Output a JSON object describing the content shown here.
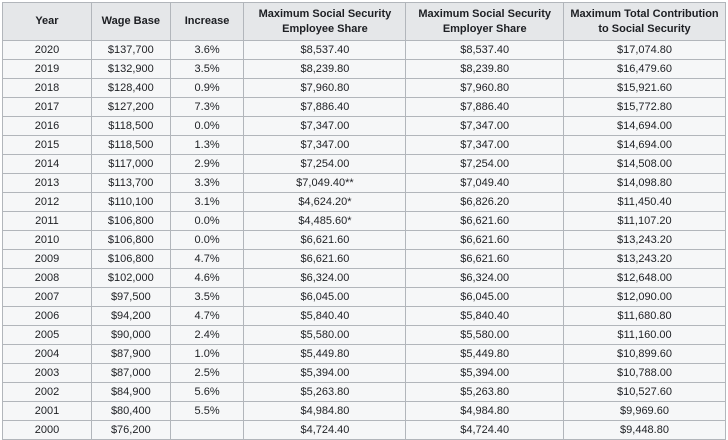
{
  "chart_data": {
    "type": "table",
    "columns": [
      {
        "line1": "Year",
        "line2": ""
      },
      {
        "line1": "Wage Base",
        "line2": ""
      },
      {
        "line1": "Increase",
        "line2": ""
      },
      {
        "line1": "Maximum Social Security",
        "line2": "Employee Share"
      },
      {
        "line1": "Maximum Social Security",
        "line2": "Employer Share"
      },
      {
        "line1": "Maximum Total Contribution",
        "line2": "to Social Security"
      }
    ],
    "rows": [
      [
        "2020",
        "$137,700",
        "3.6%",
        "$8,537.40",
        "$8,537.40",
        "$17,074.80"
      ],
      [
        "2019",
        "$132,900",
        "3.5%",
        "$8,239.80",
        "$8,239.80",
        "$16,479.60"
      ],
      [
        "2018",
        "$128,400",
        "0.9%",
        "$7,960.80",
        "$7,960.80",
        "$15,921.60"
      ],
      [
        "2017",
        "$127,200",
        "7.3%",
        "$7,886.40",
        "$7,886.40",
        "$15,772.80"
      ],
      [
        "2016",
        "$118,500",
        "0.0%",
        "$7,347.00",
        "$7,347.00",
        "$14,694.00"
      ],
      [
        "2015",
        "$118,500",
        "1.3%",
        "$7,347.00",
        "$7,347.00",
        "$14,694.00"
      ],
      [
        "2014",
        "$117,000",
        "2.9%",
        "$7,254.00",
        "$7,254.00",
        "$14,508.00"
      ],
      [
        "2013",
        "$113,700",
        "3.3%",
        "$7,049.40**",
        "$7,049.40",
        "$14,098.80"
      ],
      [
        "2012",
        "$110,100",
        "3.1%",
        "$4,624.20*",
        "$6,826.20",
        "$11,450.40"
      ],
      [
        "2011",
        "$106,800",
        "0.0%",
        "$4,485.60*",
        "$6,621.60",
        "$11,107.20"
      ],
      [
        "2010",
        "$106,800",
        "0.0%",
        "$6,621.60",
        "$6,621.60",
        "$13,243.20"
      ],
      [
        "2009",
        "$106,800",
        "4.7%",
        "$6,621.60",
        "$6,621.60",
        "$13,243.20"
      ],
      [
        "2008",
        "$102,000",
        "4.6%",
        "$6,324.00",
        "$6,324.00",
        "$12,648.00"
      ],
      [
        "2007",
        "$97,500",
        "3.5%",
        "$6,045.00",
        "$6,045.00",
        "$12,090.00"
      ],
      [
        "2006",
        "$94,200",
        "4.7%",
        "$5,840.40",
        "$5,840.40",
        "$11,680.80"
      ],
      [
        "2005",
        "$90,000",
        "2.4%",
        "$5,580.00",
        "$5,580.00",
        "$11,160.00"
      ],
      [
        "2004",
        "$87,900",
        "1.0%",
        "$5,449.80",
        "$5,449.80",
        "$10,899.60"
      ],
      [
        "2003",
        "$87,000",
        "2.5%",
        "$5,394.00",
        "$5,394.00",
        "$10,788.00"
      ],
      [
        "2002",
        "$84,900",
        "5.6%",
        "$5,263.80",
        "$5,263.80",
        "$10,527.60"
      ],
      [
        "2001",
        "$80,400",
        "5.5%",
        "$4,984.80",
        "$4,984.80",
        "$9,969.60"
      ],
      [
        "2000",
        "$76,200",
        "",
        "$4,724.40",
        "$4,724.40",
        "$9,448.80"
      ]
    ],
    "dollar_values_note_markers": [
      "*",
      "**"
    ],
    "colors": {
      "header_bg": "#e5e7e9",
      "row_bg": "#f6f7f8",
      "border": "#b2b6bb",
      "text": "#1d1f23",
      "page_bg": "#ffffff"
    }
  }
}
